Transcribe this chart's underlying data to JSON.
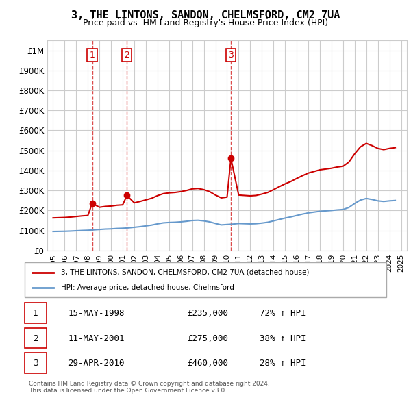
{
  "title": "3, THE LINTONS, SANDON, CHELMSFORD, CM2 7UA",
  "subtitle": "Price paid vs. HM Land Registry's House Price Index (HPI)",
  "legend_label_red": "3, THE LINTONS, SANDON, CHELMSFORD, CM2 7UA (detached house)",
  "legend_label_blue": "HPI: Average price, detached house, Chelmsford",
  "footer1": "Contains HM Land Registry data © Crown copyright and database right 2024.",
  "footer2": "This data is licensed under the Open Government Licence v3.0.",
  "transactions": [
    {
      "num": 1,
      "date": "15-MAY-1998",
      "price": "£235,000",
      "change": "72% ↑ HPI",
      "year": 1998.37
    },
    {
      "num": 2,
      "date": "11-MAY-2001",
      "price": "£275,000",
      "change": "38% ↑ HPI",
      "year": 2001.37
    },
    {
      "num": 3,
      "date": "29-APR-2010",
      "price": "£460,000",
      "change": "28% ↑ HPI",
      "year": 2010.33
    }
  ],
  "hpi_years": [
    1995,
    1995.5,
    1996,
    1996.5,
    1997,
    1997.5,
    1998,
    1998.5,
    1999,
    1999.5,
    2000,
    2000.5,
    2001,
    2001.5,
    2002,
    2002.5,
    2003,
    2003.5,
    2004,
    2004.5,
    2005,
    2005.5,
    2006,
    2006.5,
    2007,
    2007.5,
    2008,
    2008.5,
    2009,
    2009.5,
    2010,
    2010.5,
    2011,
    2011.5,
    2012,
    2012.5,
    2013,
    2013.5,
    2014,
    2014.5,
    2015,
    2015.5,
    2016,
    2016.5,
    2017,
    2017.5,
    2018,
    2018.5,
    2019,
    2019.5,
    2020,
    2020.5,
    2021,
    2021.5,
    2022,
    2022.5,
    2023,
    2023.5,
    2024,
    2024.5
  ],
  "hpi_values": [
    95000,
    95500,
    96000,
    97000,
    98500,
    100000,
    101000,
    103000,
    105000,
    107000,
    108000,
    110000,
    111000,
    113000,
    116000,
    119000,
    123000,
    127000,
    133000,
    138000,
    140000,
    141000,
    143000,
    146000,
    150000,
    151000,
    148000,
    143000,
    135000,
    128000,
    130000,
    132000,
    135000,
    134000,
    133000,
    134000,
    137000,
    141000,
    148000,
    155000,
    162000,
    168000,
    175000,
    182000,
    188000,
    192000,
    196000,
    198000,
    200000,
    203000,
    205000,
    215000,
    235000,
    252000,
    260000,
    255000,
    248000,
    245000,
    248000,
    250000
  ],
  "red_years": [
    1995,
    1995.5,
    1996,
    1996.5,
    1997,
    1997.5,
    1998,
    1998.37,
    1999,
    1999.5,
    2000,
    2000.5,
    2001,
    2001.37,
    2002,
    2002.5,
    2003,
    2003.5,
    2004,
    2004.5,
    2005,
    2005.5,
    2006,
    2006.5,
    2007,
    2007.5,
    2008,
    2008.5,
    2009,
    2009.5,
    2010,
    2010.33,
    2011,
    2011.5,
    2012,
    2012.5,
    2013,
    2013.5,
    2014,
    2014.5,
    2015,
    2015.5,
    2016,
    2016.5,
    2017,
    2017.5,
    2018,
    2018.5,
    2019,
    2019.5,
    2020,
    2020.5,
    2021,
    2021.5,
    2022,
    2022.5,
    2023,
    2023.5,
    2024,
    2024.5
  ],
  "red_values": [
    163000,
    164000,
    165000,
    167000,
    170000,
    173000,
    175000,
    235000,
    216000,
    220000,
    222000,
    226000,
    228000,
    275000,
    238000,
    245000,
    253000,
    261000,
    274000,
    284000,
    288000,
    290000,
    294000,
    300000,
    308000,
    310000,
    304000,
    294000,
    277000,
    263000,
    267000,
    460000,
    277000,
    275000,
    273000,
    275000,
    282000,
    290000,
    304000,
    319000,
    333000,
    345000,
    360000,
    374000,
    387000,
    395000,
    403000,
    407000,
    411000,
    417000,
    421000,
    442000,
    483000,
    518000,
    535000,
    524000,
    510000,
    504000,
    510000,
    514000
  ],
  "ylim": [
    0,
    1050000
  ],
  "xlim": [
    1994.5,
    2025.5
  ],
  "ytick_values": [
    0,
    100000,
    200000,
    300000,
    400000,
    500000,
    600000,
    700000,
    800000,
    900000,
    1000000
  ],
  "ytick_labels": [
    "£0",
    "£100K",
    "£200K",
    "£300K",
    "£400K",
    "£500K",
    "£600K",
    "£700K",
    "£800K",
    "£900K",
    "£1M"
  ],
  "xtick_years": [
    1995,
    1996,
    1997,
    1998,
    1999,
    2000,
    2001,
    2002,
    2003,
    2004,
    2005,
    2006,
    2007,
    2008,
    2009,
    2010,
    2011,
    2012,
    2013,
    2014,
    2015,
    2016,
    2017,
    2018,
    2019,
    2020,
    2021,
    2022,
    2023,
    2024,
    2025
  ],
  "marker_years": [
    1998.37,
    2001.37,
    2010.33
  ],
  "marker_values": [
    235000,
    275000,
    460000
  ],
  "red_color": "#cc0000",
  "blue_color": "#6699cc",
  "dashed_line_color": "#cc0000",
  "grid_color": "#cccccc",
  "bg_color": "#ffffff"
}
